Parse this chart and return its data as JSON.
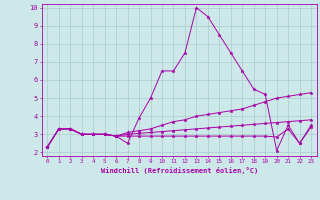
{
  "background_color": "#cce8e8",
  "grid_color": "#aacccc",
  "line_color": "#aa00aa",
  "marker": "*",
  "xlabel": "Windchill (Refroidissement éolien,°C)",
  "xlim": [
    -0.5,
    23.5
  ],
  "ylim": [
    1.8,
    10.2
  ],
  "yticks": [
    2,
    3,
    4,
    5,
    6,
    7,
    8,
    9,
    10
  ],
  "xticks": [
    0,
    1,
    2,
    3,
    4,
    5,
    6,
    7,
    8,
    9,
    10,
    11,
    12,
    13,
    14,
    15,
    16,
    17,
    18,
    19,
    20,
    21,
    22,
    23
  ],
  "series": [
    [
      2.3,
      3.3,
      3.3,
      3.0,
      3.0,
      3.0,
      2.9,
      2.5,
      3.9,
      5.0,
      6.5,
      6.5,
      7.5,
      10.0,
      9.5,
      8.5,
      7.5,
      6.5,
      5.5,
      5.2,
      2.1,
      3.5,
      2.5,
      3.5
    ],
    [
      2.3,
      3.3,
      3.3,
      3.0,
      3.0,
      3.0,
      2.9,
      3.1,
      3.2,
      3.3,
      3.5,
      3.7,
      3.8,
      4.0,
      4.1,
      4.2,
      4.3,
      4.4,
      4.6,
      4.8,
      5.0,
      5.1,
      5.2,
      5.3
    ],
    [
      2.3,
      3.3,
      3.3,
      3.0,
      3.0,
      3.0,
      2.9,
      3.0,
      3.05,
      3.1,
      3.15,
      3.2,
      3.25,
      3.3,
      3.35,
      3.4,
      3.45,
      3.5,
      3.55,
      3.6,
      3.65,
      3.7,
      3.75,
      3.8
    ],
    [
      2.3,
      3.3,
      3.3,
      3.0,
      3.0,
      3.0,
      2.9,
      2.9,
      2.9,
      2.9,
      2.9,
      2.9,
      2.9,
      2.9,
      2.9,
      2.9,
      2.9,
      2.9,
      2.9,
      2.9,
      2.85,
      3.3,
      2.5,
      3.4
    ]
  ]
}
